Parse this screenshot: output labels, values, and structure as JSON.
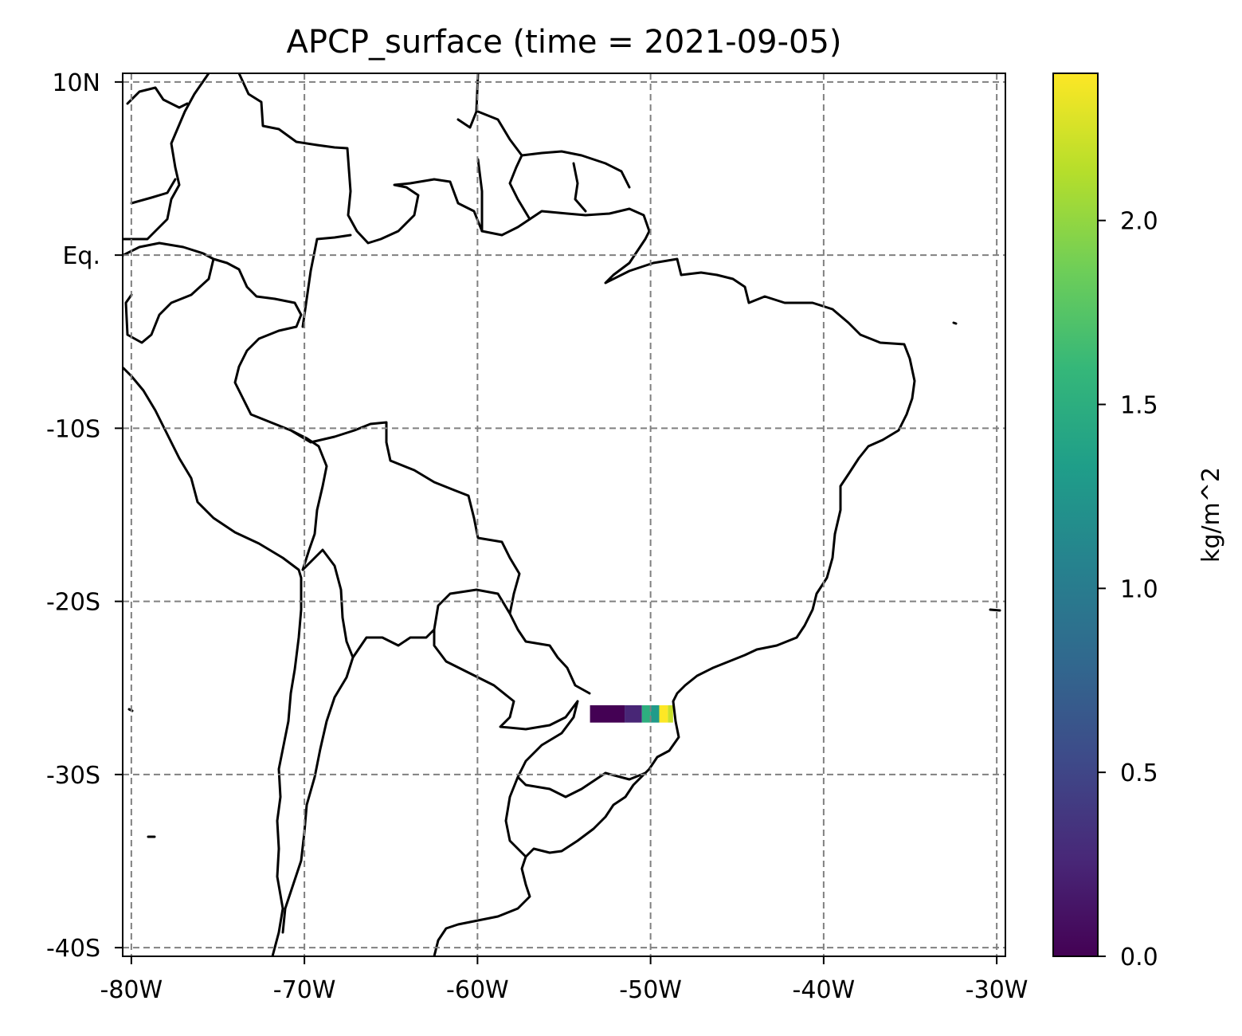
{
  "chart_data": {
    "type": "heatmap",
    "title": "APCP_surface (time = 2021-09-05)",
    "projection": "PlateCarree",
    "extent": {
      "lon": [
        -80.5,
        -29.5
      ],
      "lat": [
        -40.5,
        10.5
      ]
    },
    "x_ticks": [
      {
        "value": -80,
        "label": "-80W"
      },
      {
        "value": -70,
        "label": "-70W"
      },
      {
        "value": -60,
        "label": "-60W"
      },
      {
        "value": -50,
        "label": "-50W"
      },
      {
        "value": -40,
        "label": "-40W"
      },
      {
        "value": -30,
        "label": "-30W"
      }
    ],
    "y_ticks": [
      {
        "value": 10,
        "label": "10N"
      },
      {
        "value": 0,
        "label": "Eq."
      },
      {
        "value": -10,
        "label": "-10S"
      },
      {
        "value": -20,
        "label": "-20S"
      },
      {
        "value": -30,
        "label": "-30S"
      },
      {
        "value": -40,
        "label": "-40S"
      }
    ],
    "grid": true,
    "cells": [
      {
        "lon": [
          -53.5,
          -51.5
        ],
        "lat": [
          -27.0,
          -26.0
        ],
        "value": 0.0
      },
      {
        "lon": [
          -51.5,
          -50.5
        ],
        "lat": [
          -27.0,
          -26.0
        ],
        "value": 0.25
      },
      {
        "lon": [
          -50.5,
          -50.0
        ],
        "lat": [
          -27.0,
          -26.0
        ],
        "value": 1.5
      },
      {
        "lon": [
          -50.0,
          -49.5
        ],
        "lat": [
          -27.0,
          -26.0
        ],
        "value": 1.3
      },
      {
        "lon": [
          -49.5,
          -49.0
        ],
        "lat": [
          -27.0,
          -26.0
        ],
        "value": 2.4
      },
      {
        "lon": [
          -49.0,
          -48.7
        ],
        "lat": [
          -27.0,
          -26.0
        ],
        "value": 2.2
      }
    ],
    "colorbar": {
      "label": "kg/m^2",
      "range": [
        0,
        2.4
      ],
      "colormap": "viridis",
      "ticks": [
        {
          "value": 0.0,
          "label": "0.0"
        },
        {
          "value": 0.5,
          "label": "0.5"
        },
        {
          "value": 1.0,
          "label": "1.0"
        },
        {
          "value": 1.5,
          "label": "1.5"
        },
        {
          "value": 2.0,
          "label": "2.0"
        }
      ]
    }
  }
}
